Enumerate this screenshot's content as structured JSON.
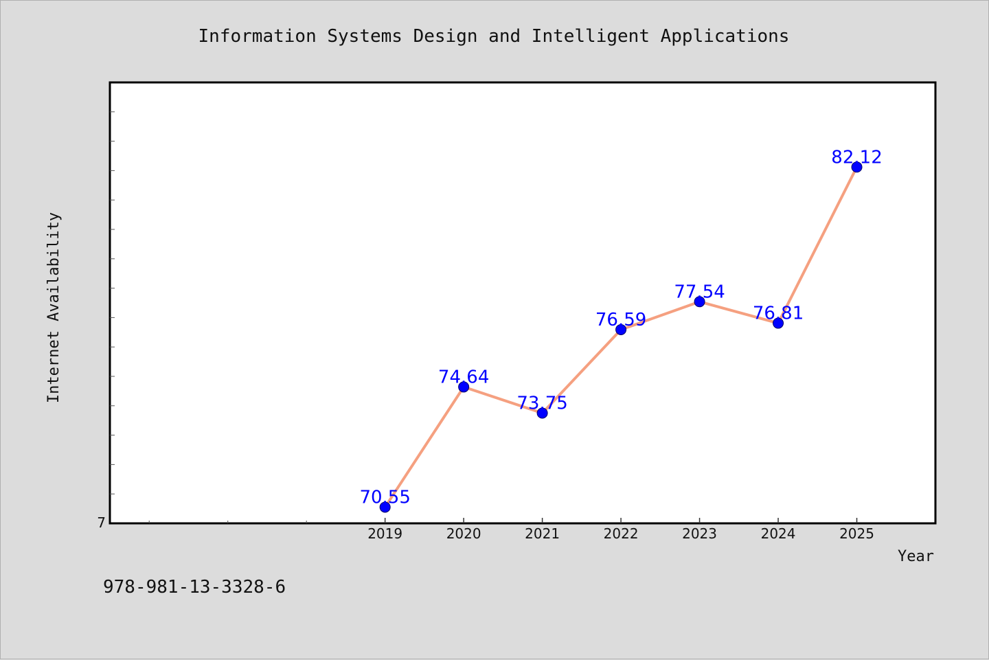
{
  "page": {
    "isbn": "978-981-13-3328-6",
    "background_color": "#dcdcdc"
  },
  "chart_data": {
    "type": "line",
    "title": "Information Systems Design and Intelligent Applications",
    "xlabel": "Year",
    "ylabel": "Internet Availability",
    "x": [
      2019,
      2020,
      2021,
      2022,
      2023,
      2024,
      2025
    ],
    "x_tick_labels": [
      "2019",
      "2020",
      "2021",
      "2022",
      "2023",
      "2024",
      "2025"
    ],
    "xlim": [
      2015.5,
      2026.0
    ],
    "series": [
      {
        "values": [
          70.55,
          74.64,
          73.75,
          76.59,
          77.54,
          76.81,
          82.12
        ],
        "data_labels": [
          "70.55",
          "74.64",
          "73.75",
          "76.59",
          "77.54",
          "76.81",
          "82.12"
        ],
        "line_color": "#f5a080",
        "marker_color": "#0000ff"
      }
    ],
    "ylim": [
      70.0,
      85.0
    ],
    "y_tick_labels": [
      "7"
    ],
    "grid": false,
    "legend": "none",
    "plot_background": "#ffffff"
  }
}
